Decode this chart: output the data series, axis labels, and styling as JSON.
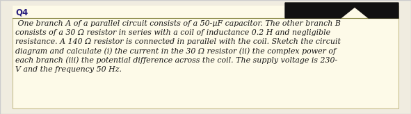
{
  "title": "Q4",
  "body_lines": [
    " One branch A of a parallel circuit consists of a 50-µF capacitor. The other branch B",
    "consists of a 30 Ω resistor in series with a coil of inductance 0.2 H and negligible",
    "resistance. A 140 Ω resistor is connected in parallel with the coil. Sketch the circuit",
    "diagram and calculate (i) the current in the 30 Ω resistor (ii) the complex power of",
    "each branch (iii) the potential difference across the coil. The supply voltage is 230-",
    "V and the frequency 50 Hz."
  ],
  "outer_bg_color": "#f0ece0",
  "content_bg_color": "#fdfae8",
  "title_color": "#2a2080",
  "text_color": "#1a1a1a",
  "black_shape_color": "#111111",
  "border_color": "#c8c090",
  "outer_border_color": "#cccccc",
  "line_color": "#888844",
  "font_size_body": 7.9,
  "font_size_title": 8.5,
  "fig_w": 5.91,
  "fig_h": 1.64,
  "dpi": 100
}
